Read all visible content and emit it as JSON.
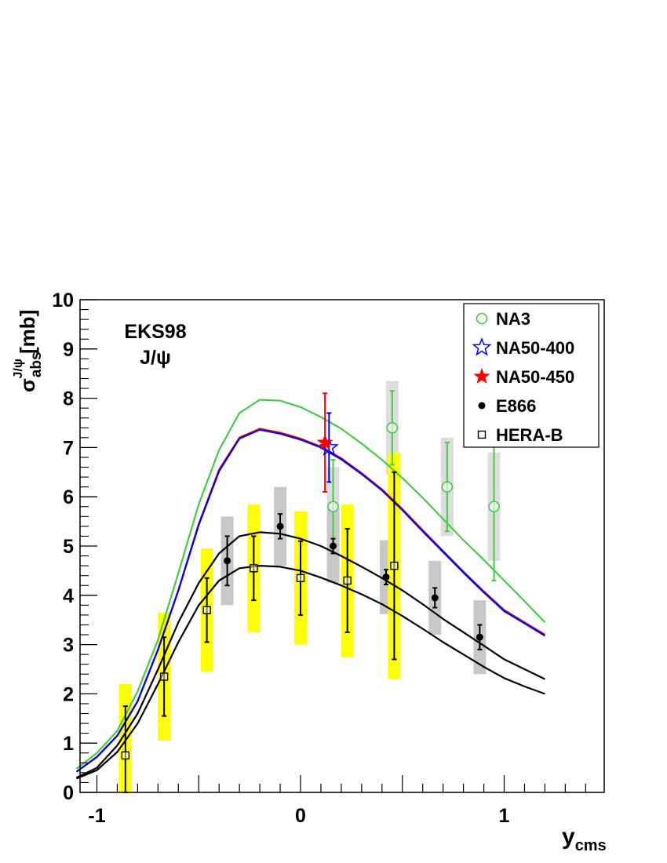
{
  "chart_data": {
    "type": "scatter",
    "title": "",
    "annotation": [
      "EKS98",
      "J/ψ"
    ],
    "xlabel": {
      "main": "y",
      "sub": "cms"
    },
    "ylabel": {
      "main": "σ",
      "sub": "abs",
      "sup": "J/ψ",
      "unit": "[mb]"
    },
    "xlim": [
      -1.1,
      1.5
    ],
    "ylim": [
      0,
      10
    ],
    "xticks": [
      -1,
      0,
      1
    ],
    "xtick_labels": [
      "-1",
      "0",
      "1"
    ],
    "yticks": [
      0,
      1,
      2,
      3,
      4,
      5,
      6,
      7,
      8,
      9,
      10
    ],
    "ytick_labels": [
      "0",
      "1",
      "2",
      "3",
      "4",
      "5",
      "6",
      "7",
      "8",
      "9",
      "10"
    ],
    "grid": false,
    "legend_position": "top-right",
    "legend": [
      {
        "label": "NA3",
        "marker": "open-circle",
        "color": "#44cc44"
      },
      {
        "label": "NA50-400",
        "marker": "open-star",
        "color": "#0000ee"
      },
      {
        "label": "NA50-450",
        "marker": "filled-star",
        "color": "#ff0000"
      },
      {
        "label": "E866",
        "marker": "filled-circle",
        "color": "#000000"
      },
      {
        "label": "HERA-B",
        "marker": "open-square",
        "color": "#000000"
      }
    ],
    "series": [
      {
        "name": "NA3",
        "marker": "open-circle",
        "color": "#44cc44",
        "sys_color": "#dddddd",
        "points": [
          {
            "x": 0.16,
            "y": 5.8,
            "err": 0.95,
            "sys": 0.8
          },
          {
            "x": 0.45,
            "y": 7.4,
            "err": 0.75,
            "sys": 0.95
          },
          {
            "x": 0.72,
            "y": 6.2,
            "err": 0.9,
            "sys": 1.0
          },
          {
            "x": 0.95,
            "y": 5.8,
            "err": 1.5,
            "sys": 1.1
          }
        ]
      },
      {
        "name": "NA50-400",
        "marker": "open-star",
        "color": "#0000ee",
        "sys_color": null,
        "points": [
          {
            "x": 0.14,
            "y": 7.0,
            "err": 0.7,
            "sys": 0
          }
        ]
      },
      {
        "name": "NA50-450",
        "marker": "filled-star",
        "color": "#ff0000",
        "sys_color": null,
        "points": [
          {
            "x": 0.12,
            "y": 7.1,
            "err": 1.0,
            "sys": 0
          }
        ]
      },
      {
        "name": "E866",
        "marker": "filled-circle",
        "color": "#000000",
        "sys_color": "#c8c8c8",
        "points": [
          {
            "x": -0.36,
            "y": 4.7,
            "err": 0.5,
            "sys": 0.9
          },
          {
            "x": -0.1,
            "y": 5.4,
            "err": 0.25,
            "sys": 0.8
          },
          {
            "x": 0.16,
            "y": 5.0,
            "err": 0.15,
            "sys": 0.75
          },
          {
            "x": 0.42,
            "y": 4.37,
            "err": 0.15,
            "sys": 0.75
          },
          {
            "x": 0.66,
            "y": 3.95,
            "err": 0.2,
            "sys": 0.75
          },
          {
            "x": 0.88,
            "y": 3.15,
            "err": 0.25,
            "sys": 0.75
          }
        ]
      },
      {
        "name": "HERA-B",
        "marker": "open-square",
        "color": "#000000",
        "sys_color": "#ffff00",
        "points": [
          {
            "x": -0.86,
            "y": 0.75,
            "err": 1.0,
            "sys": 1.45
          },
          {
            "x": -0.67,
            "y": 2.35,
            "err": 0.8,
            "sys": 1.3
          },
          {
            "x": -0.46,
            "y": 3.7,
            "err": 0.65,
            "sys": 1.25
          },
          {
            "x": -0.23,
            "y": 4.55,
            "err": 0.65,
            "sys": 1.3
          },
          {
            "x": 0.0,
            "y": 4.35,
            "err": 0.75,
            "sys": 1.35
          },
          {
            "x": 0.23,
            "y": 4.3,
            "err": 1.05,
            "sys": 1.55
          },
          {
            "x": 0.46,
            "y": 4.6,
            "err": 1.9,
            "sys": 2.3
          }
        ]
      }
    ],
    "curves": [
      {
        "color": "#44cc44",
        "x": [
          -1.1,
          -1.0,
          -0.9,
          -0.8,
          -0.7,
          -0.6,
          -0.5,
          -0.4,
          -0.3,
          -0.2,
          -0.1,
          0.0,
          0.1,
          0.2,
          0.3,
          0.4,
          0.5,
          0.6,
          0.7,
          0.8,
          0.9,
          1.0,
          1.1,
          1.2
        ],
        "y": [
          0.48,
          0.8,
          1.25,
          2.05,
          3.1,
          4.45,
          5.85,
          6.95,
          7.7,
          7.97,
          7.95,
          7.82,
          7.62,
          7.38,
          7.08,
          6.75,
          6.38,
          5.98,
          5.55,
          5.12,
          4.72,
          4.3,
          3.88,
          3.45
        ]
      },
      {
        "color": "#ee0000",
        "x": [
          -1.1,
          -1.0,
          -0.9,
          -0.8,
          -0.7,
          -0.6,
          -0.5,
          -0.4,
          -0.3,
          -0.2,
          -0.1,
          0.0,
          0.1,
          0.2,
          0.3,
          0.4,
          0.5,
          0.6,
          0.7,
          0.8,
          0.9,
          1.0,
          1.1,
          1.2
        ],
        "y": [
          0.42,
          0.72,
          1.15,
          1.85,
          2.9,
          4.1,
          5.45,
          6.55,
          7.2,
          7.38,
          7.3,
          7.18,
          7.02,
          6.78,
          6.48,
          6.15,
          5.75,
          5.32,
          4.9,
          4.48,
          4.08,
          3.7,
          3.45,
          3.2
        ]
      },
      {
        "color": "#0000ee",
        "x": [
          -1.1,
          -1.0,
          -0.9,
          -0.8,
          -0.7,
          -0.6,
          -0.5,
          -0.4,
          -0.3,
          -0.2,
          -0.1,
          0.0,
          0.1,
          0.2,
          0.3,
          0.4,
          0.5,
          0.6,
          0.7,
          0.8,
          0.9,
          1.0,
          1.1,
          1.2
        ],
        "y": [
          0.42,
          0.72,
          1.15,
          1.85,
          2.9,
          4.1,
          5.43,
          6.52,
          7.18,
          7.36,
          7.28,
          7.16,
          7.0,
          6.76,
          6.46,
          6.13,
          5.73,
          5.3,
          4.88,
          4.46,
          4.06,
          3.68,
          3.43,
          3.18
        ]
      },
      {
        "color": "#000000",
        "x": [
          -1.1,
          -1.0,
          -0.9,
          -0.8,
          -0.7,
          -0.6,
          -0.5,
          -0.4,
          -0.3,
          -0.2,
          -0.1,
          0.0,
          0.1,
          0.2,
          0.3,
          0.4,
          0.5,
          0.6,
          0.7,
          0.8,
          0.9,
          1.0,
          1.1,
          1.2
        ],
        "y": [
          0.3,
          0.5,
          0.95,
          1.6,
          2.5,
          3.45,
          4.25,
          4.85,
          5.2,
          5.28,
          5.25,
          5.15,
          5.0,
          4.8,
          4.58,
          4.35,
          4.1,
          3.82,
          3.52,
          3.25,
          2.98,
          2.7,
          2.5,
          2.3
        ]
      },
      {
        "color": "#000000",
        "x": [
          -1.1,
          -1.0,
          -0.9,
          -0.8,
          -0.7,
          -0.6,
          -0.5,
          -0.4,
          -0.3,
          -0.2,
          -0.1,
          0.0,
          0.1,
          0.2,
          0.3,
          0.4,
          0.5,
          0.6,
          0.7,
          0.8,
          0.9,
          1.0,
          1.1,
          1.2
        ],
        "y": [
          0.28,
          0.45,
          0.82,
          1.4,
          2.2,
          3.05,
          3.8,
          4.3,
          4.55,
          4.6,
          4.58,
          4.5,
          4.36,
          4.2,
          4.02,
          3.82,
          3.58,
          3.32,
          3.05,
          2.8,
          2.55,
          2.32,
          2.15,
          2.0
        ]
      }
    ]
  }
}
